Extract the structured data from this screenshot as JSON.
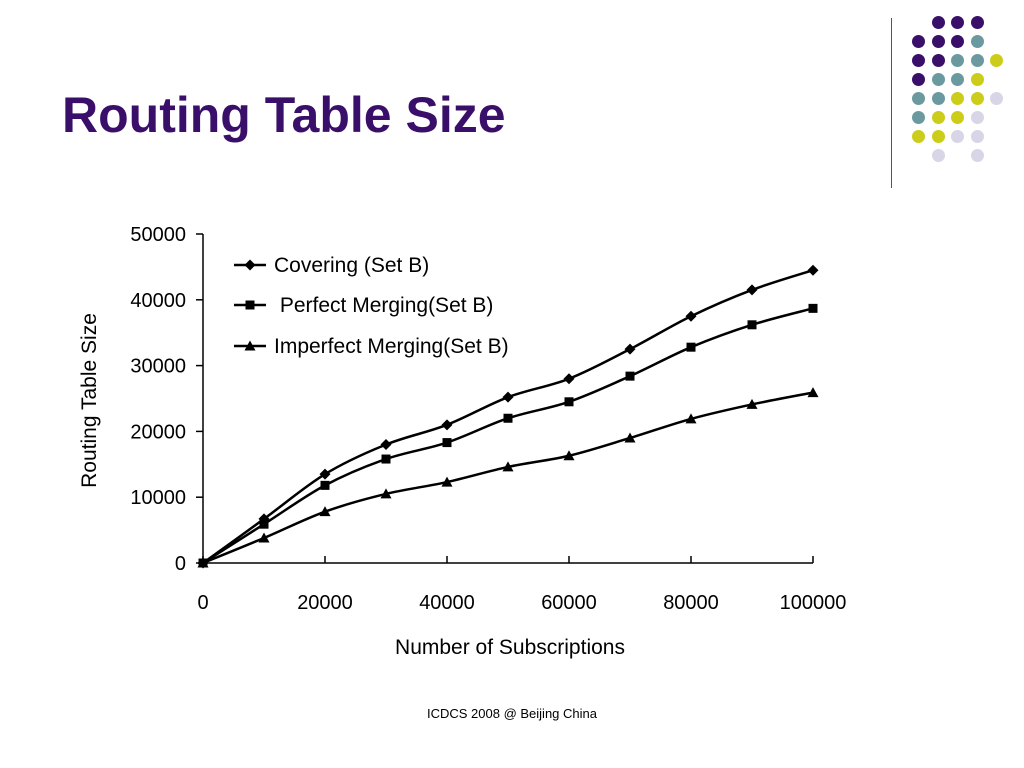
{
  "slide": {
    "title": "Routing Table Size",
    "footer": "ICDCS 2008 @ Beijing China"
  },
  "colors": {
    "title": "#3a0f6a",
    "dot_purple": "#3a0f6a",
    "dot_teal": "#6a9aa0",
    "dot_yellow": "#cccc1a",
    "dot_lavender": "#d8d6e6",
    "series": "#000000"
  },
  "chart_data": {
    "type": "line",
    "xlabel": "Number of Subscriptions",
    "ylabel": "Routing Table Size",
    "xlim": [
      0,
      100000
    ],
    "ylim": [
      0,
      50000
    ],
    "x_ticks": [
      0,
      20000,
      40000,
      60000,
      80000,
      100000
    ],
    "y_ticks": [
      0,
      10000,
      20000,
      30000,
      40000,
      50000
    ],
    "x_tick_labels": [
      "0",
      "20000",
      "40000",
      "60000",
      "80000",
      "100000"
    ],
    "y_tick_labels": [
      "0",
      "10000",
      "20000",
      "30000",
      "40000",
      "50000"
    ],
    "grid": false,
    "legend_position": "top-left",
    "x": [
      0,
      10000,
      20000,
      30000,
      40000,
      50000,
      60000,
      70000,
      80000,
      90000,
      100000
    ],
    "series": [
      {
        "name": "Covering (Set B)",
        "marker": "diamond",
        "values": [
          0,
          6700,
          13500,
          18000,
          21000,
          25200,
          28000,
          32500,
          37500,
          41500,
          44500
        ]
      },
      {
        "name": " Perfect Merging(Set B)",
        "marker": "square",
        "values": [
          0,
          5900,
          11800,
          15800,
          18300,
          22000,
          24500,
          28400,
          32800,
          36200,
          38700
        ]
      },
      {
        "name": "Imperfect Merging(Set B)",
        "marker": "triangle",
        "values": [
          0,
          3800,
          7800,
          10500,
          12300,
          14600,
          16300,
          19000,
          21900,
          24100,
          25900
        ]
      }
    ]
  }
}
